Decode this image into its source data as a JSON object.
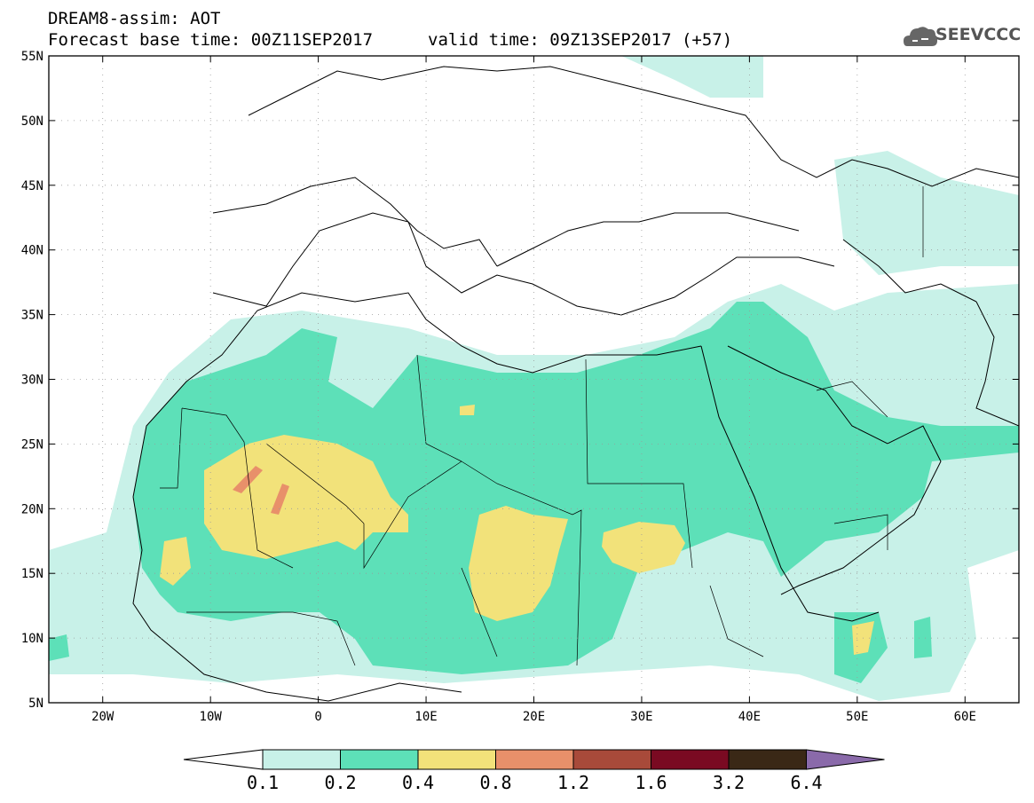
{
  "header": {
    "title": "DREAM8-assim: AOT",
    "base_time": "Forecast base time: 00Z11SEP2017",
    "valid_time": "valid time: 09Z13SEP2017 (+57)"
  },
  "logo": {
    "text": "SEEVCCC",
    "icon": "cloud-icon"
  },
  "map": {
    "lon_range": [
      -25,
      65
    ],
    "lat_range": [
      5,
      55
    ],
    "lat_ticks": [
      "55N",
      "50N",
      "45N",
      "40N",
      "35N",
      "30N",
      "25N",
      "20N",
      "15N",
      "10N",
      "5N"
    ],
    "lon_ticks": [
      "20W",
      "10W",
      "0",
      "10E",
      "20E",
      "30E",
      "40E",
      "50E",
      "60E"
    ],
    "grid": true
  },
  "legend": {
    "levels": [
      "0.1",
      "0.2",
      "0.4",
      "0.8",
      "1.2",
      "1.6",
      "3.2",
      "6.4"
    ],
    "colors": [
      "#c8f1e8",
      "#5de0b8",
      "#f2e27a",
      "#e8906a",
      "#a84a3a",
      "#7a0a22",
      "#3a2816",
      "#8a6aaa"
    ]
  }
}
